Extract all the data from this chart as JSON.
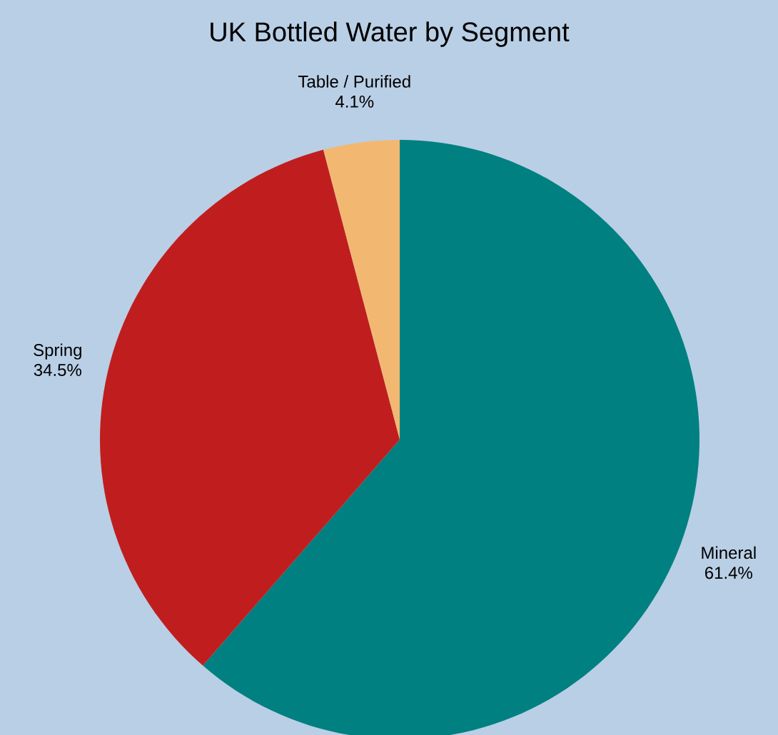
{
  "chart_data": {
    "type": "pie",
    "title": "UK Bottled Water by Segment",
    "categories": [
      "Mineral",
      "Spring",
      "Table / Purified"
    ],
    "values": [
      61.4,
      34.5,
      4.1
    ],
    "value_labels": [
      "61.4%",
      "34.5%",
      "4.1%"
    ],
    "colors": [
      "#008080",
      "#c01e1e",
      "#f2b872"
    ]
  }
}
